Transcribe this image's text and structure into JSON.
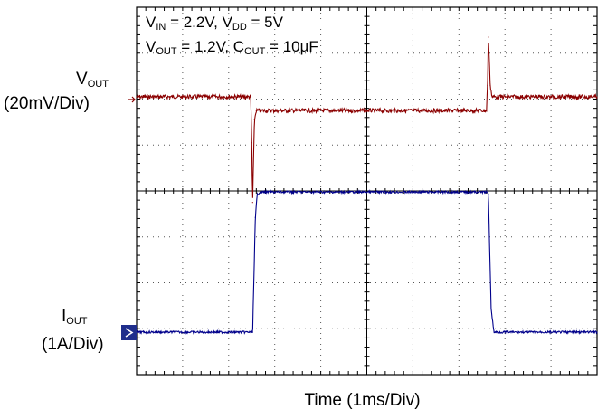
{
  "annotations": {
    "vout_name_main": "V",
    "vout_name_sub": "OUT",
    "vout_scale": "(20mV/Div)",
    "iout_name_main": "I",
    "iout_name_sub": "OUT",
    "iout_scale": "(1A/Div)",
    "cond_line1": {
      "a": "V",
      "a_sub": "IN",
      "a_rest": " = 2.2V, V",
      "b_sub": "DD",
      "b_rest": " = 5V"
    },
    "cond_line2": {
      "a": "V",
      "a_sub": "OUT",
      "a_rest": " = 1.2V, C",
      "b_sub": "OUT",
      "b_rest": " = 10µF"
    }
  },
  "chart_data": {
    "type": "line",
    "title": "",
    "xlabel": "Time (1ms/Div)",
    "ylabel": "",
    "grid": true,
    "divisions": {
      "x": 10,
      "y": 8
    },
    "xlim": [
      0,
      10
    ],
    "x_unit": "ms",
    "series": [
      {
        "name": "VOUT",
        "color": "#8b0000",
        "scale": "20mV/Div",
        "x": [
          0,
          2.48,
          2.5,
          2.52,
          2.56,
          2.6,
          7.6,
          7.62,
          7.64,
          7.68,
          7.72,
          10
        ],
        "y": [
          0,
          0,
          -20,
          -46,
          -10,
          -6,
          -6,
          5,
          26,
          5,
          0,
          0
        ],
        "unit": "mV (deviation)"
      },
      {
        "name": "IOUT",
        "color": "#00008b",
        "scale": "1A/Div",
        "x": [
          0,
          2.52,
          2.58,
          2.62,
          2.68,
          7.6,
          7.64,
          7.7,
          7.76,
          10
        ],
        "y": [
          0,
          0,
          2.5,
          3.0,
          3.05,
          3.05,
          3.0,
          0.5,
          0,
          0
        ],
        "unit": "A"
      }
    ]
  }
}
